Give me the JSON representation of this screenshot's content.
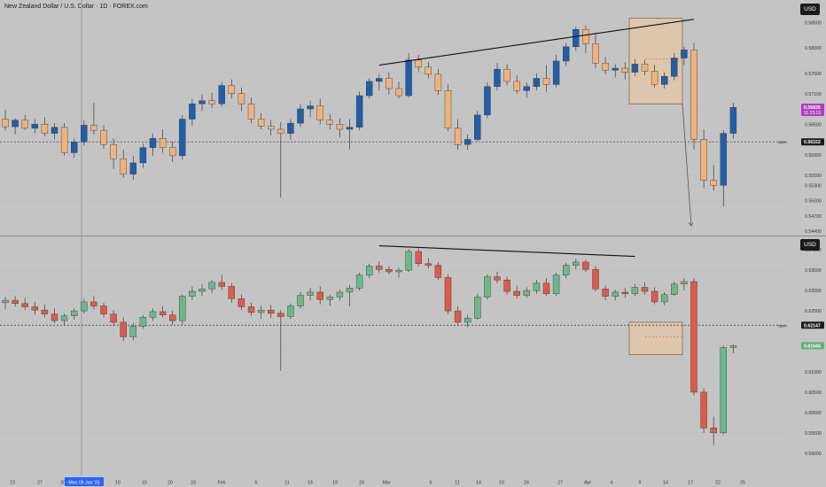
{
  "window": {
    "title": "New Zealand Dollar / U.S. Dollar · 1D · FOREX.com"
  },
  "colors": {
    "background": "#c4c4c4",
    "blue_up": "#1f5fa8",
    "orange_down": "#f0b27a",
    "green_up": "#6cb88c",
    "red_down": "#e05a48",
    "zone_fill": "#e8c7a4",
    "zone_stroke": "#7a5a3a",
    "price_label_purple": "#b23cc2",
    "price_label_green": "#5fb07a",
    "price_label_dark": "#1c1c1c"
  },
  "x_axis": {
    "ticks": [
      "23",
      "27",
      "30",
      "Mon 06 Jan '25",
      "10",
      "15",
      "20",
      "23",
      "Feb",
      "6",
      "11",
      "14",
      "19",
      "24",
      "Mar",
      "6",
      "11",
      "14",
      "19",
      "24",
      "27",
      "Apr",
      "4",
      "9",
      "14",
      "17",
      "22",
      "25"
    ],
    "highlighted": "Mon 06 Jan '25"
  },
  "chart_data": [
    {
      "type": "candlestick",
      "title": "New Zealand Dollar / U.S. Dollar · 1D · FOREX.com",
      "currency": "USD",
      "y_ticks": [
        "0.58500",
        "0.58000",
        "0.57500",
        "0.57100",
        "0.56835",
        "0.56500",
        "0.56153",
        "0.55900",
        "0.55500",
        "0.55300",
        "0.55000",
        "0.54700",
        "0.54400"
      ],
      "price_labels": [
        {
          "value": "0.56835",
          "sub": "11:23:13",
          "style": "purple"
        },
        {
          "value": "0.56153",
          "style": "dark",
          "tag": "open"
        }
      ],
      "ylim": [
        0.544,
        0.588
      ],
      "candles_ohlc": [
        [
          0.566,
          0.5678,
          0.5638,
          0.5645
        ],
        [
          0.5645,
          0.5662,
          0.563,
          0.5658
        ],
        [
          0.5658,
          0.5668,
          0.5638,
          0.5642
        ],
        [
          0.5642,
          0.566,
          0.5632,
          0.565
        ],
        [
          0.565,
          0.5664,
          0.5626,
          0.5632
        ],
        [
          0.5632,
          0.5652,
          0.562,
          0.5644
        ],
        [
          0.5644,
          0.5652,
          0.5588,
          0.5594
        ],
        [
          0.5594,
          0.5622,
          0.5584,
          0.5615
        ],
        [
          0.5615,
          0.5658,
          0.5608,
          0.5648
        ],
        [
          0.5648,
          0.5692,
          0.563,
          0.5638
        ],
        [
          0.5638,
          0.5648,
          0.5602,
          0.561
        ],
        [
          0.561,
          0.5622,
          0.5562,
          0.5582
        ],
        [
          0.5582,
          0.56,
          0.5545,
          0.5552
        ],
        [
          0.5552,
          0.5588,
          0.554,
          0.5574
        ],
        [
          0.5574,
          0.5612,
          0.5564,
          0.5604
        ],
        [
          0.5604,
          0.5632,
          0.5588,
          0.5622
        ],
        [
          0.5622,
          0.564,
          0.5594,
          0.5604
        ],
        [
          0.5604,
          0.5616,
          0.5576,
          0.5588
        ],
        [
          0.5588,
          0.5668,
          0.558,
          0.566
        ],
        [
          0.566,
          0.57,
          0.5646,
          0.569
        ],
        [
          0.569,
          0.5708,
          0.5676,
          0.5696
        ],
        [
          0.5696,
          0.5712,
          0.5682,
          0.569
        ],
        [
          0.569,
          0.5732,
          0.5684,
          0.5726
        ],
        [
          0.5726,
          0.5738,
          0.57,
          0.571
        ],
        [
          0.571,
          0.5722,
          0.5676,
          0.569
        ],
        [
          0.569,
          0.5702,
          0.5652,
          0.566
        ],
        [
          0.566,
          0.5672,
          0.564,
          0.5646
        ],
        [
          0.5646,
          0.5658,
          0.5628,
          0.564
        ],
        [
          0.564,
          0.5654,
          0.5506,
          0.5632
        ],
        [
          0.5632,
          0.566,
          0.562,
          0.5652
        ],
        [
          0.5652,
          0.569,
          0.5644,
          0.568
        ],
        [
          0.568,
          0.5696,
          0.5664,
          0.5686
        ],
        [
          0.5686,
          0.57,
          0.565,
          0.5658
        ],
        [
          0.5658,
          0.567,
          0.564,
          0.565
        ],
        [
          0.565,
          0.5662,
          0.5624,
          0.564
        ],
        [
          0.564,
          0.566,
          0.56,
          0.5644
        ],
        [
          0.5644,
          0.5714,
          0.5638,
          0.5706
        ],
        [
          0.5706,
          0.574,
          0.57,
          0.5734
        ],
        [
          0.5734,
          0.5748,
          0.5716,
          0.574
        ],
        [
          0.574,
          0.5752,
          0.5708,
          0.572
        ],
        [
          0.572,
          0.5734,
          0.57,
          0.5706
        ],
        [
          0.5706,
          0.579,
          0.5702,
          0.5776
        ],
        [
          0.5776,
          0.5786,
          0.5752,
          0.5762
        ],
        [
          0.5762,
          0.5772,
          0.574,
          0.5748
        ],
        [
          0.5748,
          0.5758,
          0.5708,
          0.5716
        ],
        [
          0.5716,
          0.5728,
          0.5636,
          0.5642
        ],
        [
          0.5642,
          0.566,
          0.56,
          0.561
        ],
        [
          0.561,
          0.563,
          0.56,
          0.562
        ],
        [
          0.562,
          0.5676,
          0.5616,
          0.5668
        ],
        [
          0.5668,
          0.5732,
          0.5662,
          0.5724
        ],
        [
          0.5724,
          0.577,
          0.5716,
          0.5758
        ],
        [
          0.5758,
          0.5768,
          0.5726,
          0.5734
        ],
        [
          0.5734,
          0.5746,
          0.571,
          0.5716
        ],
        [
          0.5716,
          0.5732,
          0.5702,
          0.5724
        ],
        [
          0.5724,
          0.575,
          0.5716,
          0.574
        ],
        [
          0.574,
          0.5766,
          0.5714,
          0.5728
        ],
        [
          0.5728,
          0.5786,
          0.5722,
          0.5774
        ],
        [
          0.5774,
          0.581,
          0.5764,
          0.5802
        ],
        [
          0.5802,
          0.5842,
          0.5794,
          0.5836
        ],
        [
          0.5836,
          0.5844,
          0.579,
          0.5808
        ],
        [
          0.5808,
          0.583,
          0.576,
          0.577
        ],
        [
          0.577,
          0.5782,
          0.5748,
          0.5756
        ],
        [
          0.5756,
          0.5768,
          0.5742,
          0.576
        ],
        [
          0.576,
          0.5772,
          0.5738,
          0.5752
        ],
        [
          0.5752,
          0.5778,
          0.5744,
          0.5768
        ],
        [
          0.5768,
          0.5776,
          0.5746,
          0.5754
        ],
        [
          0.5754,
          0.5766,
          0.5722,
          0.5728
        ],
        [
          0.5728,
          0.5752,
          0.572,
          0.5744
        ],
        [
          0.5744,
          0.579,
          0.5736,
          0.578
        ],
        [
          0.578,
          0.5802,
          0.5766,
          0.5796
        ],
        [
          0.5796,
          0.581,
          0.56,
          0.562
        ],
        [
          0.562,
          0.564,
          0.5524,
          0.554
        ],
        [
          0.554,
          0.557,
          0.552,
          0.553
        ],
        [
          0.553,
          0.5638,
          0.5488,
          0.5632
        ],
        [
          0.5632,
          0.5692,
          0.5622,
          0.5683
        ]
      ]
    },
    {
      "type": "candlestick",
      "currency": "USD",
      "y_ticks": [
        "0.64000",
        "0.63500",
        "0.63000",
        "0.62500",
        "0.62147",
        "0.61644",
        "0.61000",
        "0.60500",
        "0.60000",
        "0.59500",
        "0.59000"
      ],
      "price_labels": [
        {
          "value": "0.62147",
          "style": "dark",
          "tag": "open"
        },
        {
          "value": "0.61644",
          "style": "green"
        }
      ],
      "ylim": [
        0.588,
        0.642
      ],
      "candles_ohlc": [
        [
          0.627,
          0.6284,
          0.6254,
          0.6276
        ],
        [
          0.6276,
          0.6286,
          0.626,
          0.6268
        ],
        [
          0.6268,
          0.6282,
          0.6252,
          0.626
        ],
        [
          0.626,
          0.6272,
          0.624,
          0.6252
        ],
        [
          0.6252,
          0.6266,
          0.6234,
          0.6242
        ],
        [
          0.6242,
          0.6256,
          0.622,
          0.6226
        ],
        [
          0.6226,
          0.6244,
          0.6214,
          0.6238
        ],
        [
          0.6238,
          0.6256,
          0.6228,
          0.625
        ],
        [
          0.625,
          0.628,
          0.6244,
          0.6272
        ],
        [
          0.6272,
          0.6286,
          0.6254,
          0.6262
        ],
        [
          0.6262,
          0.627,
          0.6234,
          0.6242
        ],
        [
          0.6242,
          0.6252,
          0.6212,
          0.6222
        ],
        [
          0.6222,
          0.6234,
          0.6176,
          0.6186
        ],
        [
          0.6186,
          0.622,
          0.6178,
          0.6212
        ],
        [
          0.6212,
          0.624,
          0.6206,
          0.6234
        ],
        [
          0.6234,
          0.6256,
          0.6226,
          0.6248
        ],
        [
          0.6248,
          0.6262,
          0.6234,
          0.624
        ],
        [
          0.624,
          0.625,
          0.6216,
          0.6226
        ],
        [
          0.6226,
          0.629,
          0.6216,
          0.6286
        ],
        [
          0.6286,
          0.631,
          0.6276,
          0.6298
        ],
        [
          0.6298,
          0.6316,
          0.6286,
          0.6304
        ],
        [
          0.6304,
          0.6326,
          0.6294,
          0.632
        ],
        [
          0.632,
          0.6338,
          0.6302,
          0.631
        ],
        [
          0.631,
          0.6318,
          0.627,
          0.628
        ],
        [
          0.628,
          0.629,
          0.6252,
          0.626
        ],
        [
          0.626,
          0.627,
          0.6238,
          0.6246
        ],
        [
          0.6246,
          0.6262,
          0.623,
          0.6252
        ],
        [
          0.6252,
          0.6264,
          0.6232,
          0.6244
        ],
        [
          0.6244,
          0.6252,
          0.6102,
          0.6236
        ],
        [
          0.6236,
          0.6268,
          0.623,
          0.6262
        ],
        [
          0.6262,
          0.6296,
          0.6256,
          0.6288
        ],
        [
          0.6288,
          0.6306,
          0.6276,
          0.6296
        ],
        [
          0.6296,
          0.631,
          0.6266,
          0.6278
        ],
        [
          0.6278,
          0.629,
          0.6262,
          0.6284
        ],
        [
          0.6284,
          0.6302,
          0.6276,
          0.6296
        ],
        [
          0.6296,
          0.6314,
          0.6262,
          0.6306
        ],
        [
          0.6306,
          0.6344,
          0.63,
          0.6338
        ],
        [
          0.6338,
          0.6366,
          0.633,
          0.636
        ],
        [
          0.636,
          0.6372,
          0.6344,
          0.6352
        ],
        [
          0.6352,
          0.636,
          0.634,
          0.6346
        ],
        [
          0.6346,
          0.6356,
          0.6332,
          0.635
        ],
        [
          0.635,
          0.6402,
          0.6346,
          0.6396
        ],
        [
          0.6396,
          0.6404,
          0.636,
          0.6366
        ],
        [
          0.6366,
          0.638,
          0.6354,
          0.6362
        ],
        [
          0.6362,
          0.637,
          0.6326,
          0.6332
        ],
        [
          0.6332,
          0.634,
          0.6242,
          0.625
        ],
        [
          0.625,
          0.6262,
          0.6216,
          0.6222
        ],
        [
          0.6222,
          0.624,
          0.621,
          0.6232
        ],
        [
          0.6232,
          0.6292,
          0.6228,
          0.6284
        ],
        [
          0.6284,
          0.634,
          0.6278,
          0.6334
        ],
        [
          0.6334,
          0.6346,
          0.6318,
          0.6326
        ],
        [
          0.6326,
          0.6334,
          0.629,
          0.6298
        ],
        [
          0.6298,
          0.6312,
          0.628,
          0.6288
        ],
        [
          0.6288,
          0.6308,
          0.6282,
          0.63
        ],
        [
          0.63,
          0.6326,
          0.6292,
          0.6318
        ],
        [
          0.6318,
          0.633,
          0.6286,
          0.6292
        ],
        [
          0.6292,
          0.6344,
          0.6286,
          0.6338
        ],
        [
          0.6338,
          0.6368,
          0.633,
          0.6362
        ],
        [
          0.6362,
          0.6378,
          0.6352,
          0.637
        ],
        [
          0.637,
          0.6376,
          0.6346,
          0.6352
        ],
        [
          0.6352,
          0.636,
          0.6298,
          0.6304
        ],
        [
          0.6304,
          0.6312,
          0.6276,
          0.6286
        ],
        [
          0.6286,
          0.6302,
          0.6276,
          0.6296
        ],
        [
          0.6296,
          0.6306,
          0.6282,
          0.6292
        ],
        [
          0.6292,
          0.6316,
          0.6286,
          0.6308
        ],
        [
          0.6308,
          0.632,
          0.629,
          0.6298
        ],
        [
          0.6298,
          0.6308,
          0.6266,
          0.6272
        ],
        [
          0.6272,
          0.6296,
          0.6264,
          0.629
        ],
        [
          0.629,
          0.6322,
          0.6286,
          0.6316
        ],
        [
          0.6316,
          0.633,
          0.63,
          0.6322
        ],
        [
          0.6322,
          0.633,
          0.6042,
          0.605
        ],
        [
          0.605,
          0.606,
          0.595,
          0.5962
        ],
        [
          0.5962,
          0.599,
          0.592,
          0.595
        ],
        [
          0.595,
          0.6164,
          0.5946,
          0.616
        ],
        [
          0.616,
          0.6168,
          0.6146,
          0.6164
        ]
      ]
    }
  ]
}
